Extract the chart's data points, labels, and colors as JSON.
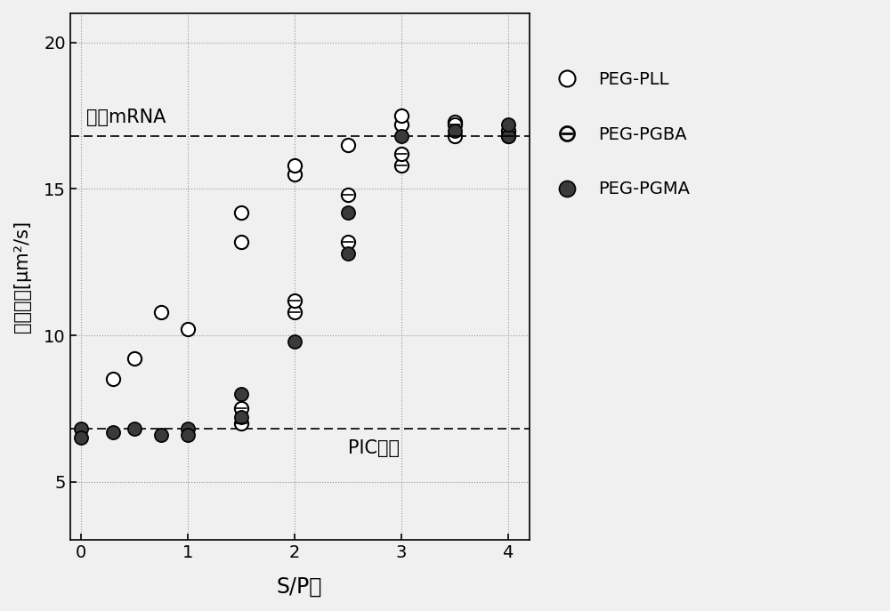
{
  "title": "",
  "xlabel": "S/P比",
  "ylabel": "扩散系数[μm²/s]",
  "xlim": [
    -0.1,
    4.2
  ],
  "ylim": [
    3,
    21
  ],
  "yticks": [
    5,
    10,
    15,
    20
  ],
  "xticks": [
    0,
    1,
    2,
    3,
    4
  ],
  "free_mrna_line": 16.8,
  "pic_micelle_line": 6.8,
  "free_mrna_label": "游离mRNA",
  "pic_micelle_label": "PIC胶束",
  "peg_pll": {
    "label": "PEG-PLL",
    "x": [
      0.3,
      0.5,
      0.75,
      1.0,
      1.5,
      1.5,
      2.0,
      2.0,
      2.5,
      3.0,
      3.0,
      3.5,
      4.0
    ],
    "y": [
      8.5,
      9.2,
      10.8,
      10.2,
      14.2,
      13.2,
      15.5,
      15.8,
      16.5,
      17.2,
      17.5,
      17.3,
      17.0
    ]
  },
  "peg_pgba": {
    "label": "PEG-PGBA",
    "x": [
      1.5,
      1.5,
      2.0,
      2.0,
      2.5,
      2.5,
      3.0,
      3.0,
      3.5,
      3.5,
      4.0
    ],
    "y": [
      7.0,
      7.5,
      10.8,
      11.2,
      13.2,
      14.8,
      15.8,
      16.2,
      16.8,
      17.2,
      16.8
    ]
  },
  "peg_pgma": {
    "label": "PEG-PGMA",
    "x": [
      0.0,
      0.0,
      0.3,
      0.5,
      0.75,
      1.0,
      1.0,
      1.5,
      1.5,
      2.0,
      2.5,
      2.5,
      3.0,
      3.5,
      4.0,
      4.0
    ],
    "y": [
      6.8,
      6.5,
      6.7,
      6.8,
      6.6,
      6.8,
      6.6,
      7.2,
      8.0,
      9.8,
      14.2,
      12.8,
      16.8,
      17.0,
      16.8,
      17.2
    ]
  },
  "background_color": "#f0f0f0",
  "plot_bg_color": "#f0f0f0",
  "marker_size": 120
}
